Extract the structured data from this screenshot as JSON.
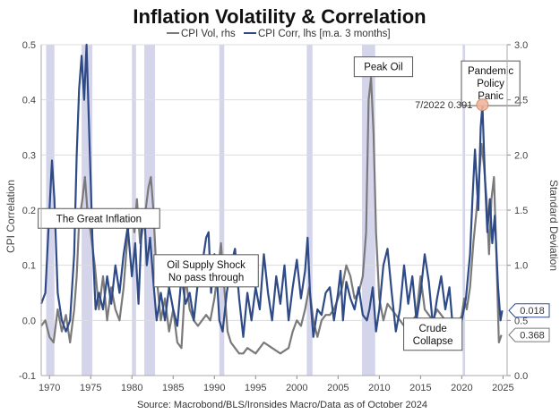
{
  "chart_data": {
    "type": "line",
    "title": "Inflation Volatility & Correlation",
    "source": "Source: Macrobond/BLS/Ironsides Macro/Data as of October 2024",
    "y_left_label": "CPI Correlation",
    "y_right_label": "Standard Deviation",
    "ylim_left": [
      -0.1,
      0.5
    ],
    "ylim_right": [
      0.0,
      3.0
    ],
    "xlim": [
      1969,
      2025.5
    ],
    "x_ticks": [
      "1970",
      "1975",
      "1980",
      "1985",
      "1990",
      "1995",
      "2000",
      "2005",
      "2010",
      "2015",
      "2020",
      "2025"
    ],
    "y_left_ticks": [
      "-0.1",
      "0.0",
      "0.1",
      "0.2",
      "0.3",
      "0.4",
      "0.5"
    ],
    "y_right_ticks": [
      "0.0",
      "0.5",
      "1.0",
      "1.5",
      "2.0",
      "2.5",
      "3.0"
    ],
    "colors": {
      "corr": "#2e4a87",
      "vol": "#7a7a7a",
      "band": "#c9cbe6",
      "callout_marker": "#f2b49a"
    },
    "series": [
      {
        "name": "CPI Vol, rhs",
        "axis": "right",
        "points": [
          [
            1969.0,
            0.45
          ],
          [
            1969.5,
            0.5
          ],
          [
            1970.0,
            0.35
          ],
          [
            1970.5,
            0.3
          ],
          [
            1971.0,
            0.6
          ],
          [
            1971.5,
            0.4
          ],
          [
            1972.0,
            0.55
          ],
          [
            1972.5,
            0.3
          ],
          [
            1973.0,
            0.6
          ],
          [
            1973.3,
            0.9
          ],
          [
            1973.6,
            1.4
          ],
          [
            1974.0,
            1.6
          ],
          [
            1974.3,
            1.8
          ],
          [
            1974.6,
            1.5
          ],
          [
            1975.0,
            1.3
          ],
          [
            1975.5,
            1.0
          ],
          [
            1976.0,
            0.6
          ],
          [
            1976.5,
            0.9
          ],
          [
            1977.0,
            0.5
          ],
          [
            1977.5,
            0.8
          ],
          [
            1978.0,
            0.6
          ],
          [
            1978.5,
            0.5
          ],
          [
            1979.0,
            0.8
          ],
          [
            1979.5,
            1.3
          ],
          [
            1980.0,
            1.5
          ],
          [
            1980.3,
            1.3
          ],
          [
            1980.6,
            1.6
          ],
          [
            1981.0,
            1.2
          ],
          [
            1981.5,
            1.4
          ],
          [
            1982.0,
            1.7
          ],
          [
            1982.3,
            1.8
          ],
          [
            1982.6,
            1.5
          ],
          [
            1983.0,
            0.9
          ],
          [
            1983.5,
            0.5
          ],
          [
            1984.0,
            0.7
          ],
          [
            1984.5,
            0.4
          ],
          [
            1985.0,
            0.6
          ],
          [
            1985.5,
            0.3
          ],
          [
            1986.0,
            0.25
          ],
          [
            1986.5,
            0.9
          ],
          [
            1987.0,
            0.6
          ],
          [
            1987.5,
            0.5
          ],
          [
            1988.0,
            0.45
          ],
          [
            1988.5,
            0.5
          ],
          [
            1989.0,
            0.55
          ],
          [
            1989.5,
            0.5
          ],
          [
            1990.0,
            0.7
          ],
          [
            1990.5,
            1.0
          ],
          [
            1990.8,
            1.2
          ],
          [
            1991.2,
            0.8
          ],
          [
            1991.6,
            0.4
          ],
          [
            1992.0,
            0.3
          ],
          [
            1992.5,
            0.25
          ],
          [
            1993.0,
            0.2
          ],
          [
            1993.5,
            0.2
          ],
          [
            1994.0,
            0.25
          ],
          [
            1995.0,
            0.2
          ],
          [
            1996.0,
            0.3
          ],
          [
            1997.0,
            0.25
          ],
          [
            1998.0,
            0.2
          ],
          [
            1999.0,
            0.25
          ],
          [
            1999.5,
            0.4
          ],
          [
            2000.0,
            0.5
          ],
          [
            2000.5,
            0.45
          ],
          [
            2001.0,
            0.6
          ],
          [
            2001.5,
            0.8
          ],
          [
            2002.0,
            0.5
          ],
          [
            2002.5,
            0.35
          ],
          [
            2003.0,
            0.5
          ],
          [
            2003.5,
            0.55
          ],
          [
            2004.0,
            0.55
          ],
          [
            2004.5,
            0.6
          ],
          [
            2005.0,
            0.7
          ],
          [
            2005.5,
            0.8
          ],
          [
            2006.0,
            1.0
          ],
          [
            2006.5,
            0.9
          ],
          [
            2007.0,
            0.7
          ],
          [
            2007.5,
            0.75
          ],
          [
            2008.0,
            0.9
          ],
          [
            2008.4,
            1.3
          ],
          [
            2008.7,
            2.5
          ],
          [
            2009.0,
            2.7
          ],
          [
            2009.3,
            2.2
          ],
          [
            2009.6,
            1.3
          ],
          [
            2010.0,
            0.7
          ],
          [
            2010.5,
            0.5
          ],
          [
            2011.0,
            0.65
          ],
          [
            2011.5,
            0.6
          ],
          [
            2012.0,
            0.55
          ],
          [
            2012.5,
            0.5
          ],
          [
            2013.0,
            0.45
          ],
          [
            2013.5,
            0.5
          ],
          [
            2014.0,
            0.5
          ],
          [
            2014.5,
            0.55
          ],
          [
            2015.0,
            0.9
          ],
          [
            2015.5,
            0.6
          ],
          [
            2016.0,
            0.55
          ],
          [
            2016.5,
            0.5
          ],
          [
            2017.0,
            0.6
          ],
          [
            2017.5,
            0.55
          ],
          [
            2018.0,
            0.5
          ],
          [
            2018.5,
            0.45
          ],
          [
            2019.0,
            0.5
          ],
          [
            2019.5,
            0.45
          ],
          [
            2020.0,
            0.55
          ],
          [
            2020.3,
            0.7
          ],
          [
            2020.6,
            0.6
          ],
          [
            2021.0,
            0.8
          ],
          [
            2021.4,
            1.2
          ],
          [
            2021.8,
            1.5
          ],
          [
            2022.1,
            1.8
          ],
          [
            2022.4,
            2.1
          ],
          [
            2022.7,
            1.9
          ],
          [
            2023.0,
            1.6
          ],
          [
            2023.3,
            1.1
          ],
          [
            2023.6,
            1.6
          ],
          [
            2023.9,
            1.8
          ],
          [
            2024.2,
            1.1
          ],
          [
            2024.5,
            0.3
          ],
          [
            2024.8,
            0.368
          ]
        ]
      },
      {
        "name": "CPI Corr, lhs [m.a. 3 months]",
        "axis": "left",
        "points": [
          [
            1969.0,
            0.03
          ],
          [
            1969.5,
            0.05
          ],
          [
            1970.0,
            0.2
          ],
          [
            1970.3,
            0.29
          ],
          [
            1970.6,
            0.22
          ],
          [
            1971.0,
            0.05
          ],
          [
            1971.5,
            0.0
          ],
          [
            1972.0,
            -0.02
          ],
          [
            1972.5,
            0.0
          ],
          [
            1973.0,
            0.12
          ],
          [
            1973.3,
            0.3
          ],
          [
            1973.6,
            0.42
          ],
          [
            1973.9,
            0.48
          ],
          [
            1974.2,
            0.4
          ],
          [
            1974.5,
            0.5
          ],
          [
            1974.8,
            0.35
          ],
          [
            1975.2,
            0.15
          ],
          [
            1975.6,
            0.02
          ],
          [
            1976.0,
            0.05
          ],
          [
            1976.5,
            0.02
          ],
          [
            1977.0,
            0.08
          ],
          [
            1977.5,
            0.03
          ],
          [
            1978.0,
            0.1
          ],
          [
            1978.5,
            0.05
          ],
          [
            1979.0,
            0.12
          ],
          [
            1979.5,
            0.17
          ],
          [
            1980.0,
            0.08
          ],
          [
            1980.4,
            0.14
          ],
          [
            1980.8,
            0.03
          ],
          [
            1981.2,
            0.18
          ],
          [
            1981.5,
            0.2
          ],
          [
            1981.8,
            0.1
          ],
          [
            1982.2,
            0.15
          ],
          [
            1982.6,
            0.07
          ],
          [
            1983.0,
            0.0
          ],
          [
            1983.5,
            0.05
          ],
          [
            1984.0,
            0.0
          ],
          [
            1984.5,
            0.06
          ],
          [
            1985.0,
            0.02
          ],
          [
            1985.5,
            -0.01
          ],
          [
            1986.0,
            0.08
          ],
          [
            1986.5,
            0.03
          ],
          [
            1987.0,
            0.05
          ],
          [
            1987.5,
            0.0
          ],
          [
            1988.0,
            0.07
          ],
          [
            1988.5,
            0.1
          ],
          [
            1989.0,
            0.15
          ],
          [
            1989.3,
            0.16
          ],
          [
            1989.6,
            0.05
          ],
          [
            1990.0,
            0.12
          ],
          [
            1990.3,
            0.08
          ],
          [
            1990.6,
            0.0
          ],
          [
            1991.0,
            -0.02
          ],
          [
            1991.5,
            0.05
          ],
          [
            1992.0,
            0.1
          ],
          [
            1992.5,
            0.13
          ],
          [
            1993.0,
            0.04
          ],
          [
            1993.5,
            -0.03
          ],
          [
            1994.0,
            0.05
          ],
          [
            1994.5,
            0.0
          ],
          [
            1995.0,
            0.06
          ],
          [
            1995.5,
            0.02
          ],
          [
            1996.0,
            0.12
          ],
          [
            1996.5,
            0.05
          ],
          [
            1997.0,
            0.0
          ],
          [
            1997.5,
            0.08
          ],
          [
            1998.0,
            0.03
          ],
          [
            1998.5,
            0.1
          ],
          [
            1999.0,
            0.0
          ],
          [
            1999.5,
            0.06
          ],
          [
            2000.0,
            0.11
          ],
          [
            2000.5,
            0.04
          ],
          [
            2001.0,
            0.09
          ],
          [
            2001.3,
            0.15
          ],
          [
            2001.6,
            0.05
          ],
          [
            2002.0,
            -0.03
          ],
          [
            2002.5,
            0.02
          ],
          [
            2003.0,
            0.01
          ],
          [
            2003.5,
            0.05
          ],
          [
            2004.0,
            0.06
          ],
          [
            2004.5,
            0.0
          ],
          [
            2005.0,
            0.05
          ],
          [
            2005.3,
            0.09
          ],
          [
            2005.6,
            0.0
          ],
          [
            2006.0,
            0.07
          ],
          [
            2006.5,
            0.04
          ],
          [
            2007.0,
            0.02
          ],
          [
            2007.5,
            0.06
          ],
          [
            2008.0,
            0.01
          ],
          [
            2008.5,
            0.0
          ],
          [
            2008.8,
            0.02
          ],
          [
            2009.2,
            0.06
          ],
          [
            2009.6,
            -0.02
          ],
          [
            2010.0,
            0.02
          ],
          [
            2010.5,
            0.1
          ],
          [
            2011.0,
            0.13
          ],
          [
            2011.5,
            0.05
          ],
          [
            2012.0,
            -0.02
          ],
          [
            2012.5,
            0.02
          ],
          [
            2013.0,
            0.1
          ],
          [
            2013.5,
            0.03
          ],
          [
            2014.0,
            0.08
          ],
          [
            2014.5,
            0.0
          ],
          [
            2015.0,
            0.05
          ],
          [
            2015.5,
            0.12
          ],
          [
            2016.0,
            0.07
          ],
          [
            2016.5,
            -0.01
          ],
          [
            2017.0,
            0.04
          ],
          [
            2017.5,
            0.08
          ],
          [
            2018.0,
            0.02
          ],
          [
            2018.5,
            0.06
          ],
          [
            2019.0,
            -0.03
          ],
          [
            2019.5,
            -0.02
          ],
          [
            2020.0,
            0.0
          ],
          [
            2020.5,
            0.04
          ],
          [
            2021.0,
            0.12
          ],
          [
            2021.3,
            0.22
          ],
          [
            2021.6,
            0.31
          ],
          [
            2022.0,
            0.2
          ],
          [
            2022.3,
            0.35
          ],
          [
            2022.5,
            0.391
          ],
          [
            2022.8,
            0.26
          ],
          [
            2023.1,
            0.16
          ],
          [
            2023.4,
            0.22
          ],
          [
            2023.7,
            0.14
          ],
          [
            2024.0,
            0.19
          ],
          [
            2024.4,
            0.06
          ],
          [
            2024.7,
            0.0
          ],
          [
            2024.9,
            0.018
          ]
        ]
      }
    ],
    "bands": [
      [
        1969.6,
        1970.6
      ],
      [
        1973.9,
        1975.2
      ],
      [
        1980.0,
        1980.5
      ],
      [
        1981.5,
        1982.8
      ],
      [
        1990.6,
        1991.2
      ],
      [
        2001.2,
        2001.9
      ],
      [
        2007.9,
        2009.5
      ],
      [
        2020.1,
        2020.4
      ]
    ],
    "annotations": [
      {
        "lines": [
          "The Great Inflation"
        ],
        "x": 1976,
        "y": 0.185
      },
      {
        "lines": [
          "Oil Supply Shock",
          "No pass through"
        ],
        "x": 1989,
        "y": 0.09
      },
      {
        "lines": [
          "Peak Oil"
        ],
        "x": 2010.5,
        "y": 0.46
      },
      {
        "lines": [
          "Crude",
          "Collapse"
        ],
        "x": 2016.5,
        "y": -0.025
      },
      {
        "lines": [
          "Pandemic",
          "Policy",
          "Panic"
        ],
        "x": 2023.5,
        "y": 0.43
      }
    ],
    "highlight": {
      "label": "7/2022 0.391",
      "x": 2022.5,
      "y": 0.391
    },
    "end_labels": [
      {
        "series": "CPI Corr, lhs [m.a. 3 months]",
        "text": "0.018"
      },
      {
        "series": "CPI Vol, rhs",
        "text": "0.368"
      }
    ]
  }
}
